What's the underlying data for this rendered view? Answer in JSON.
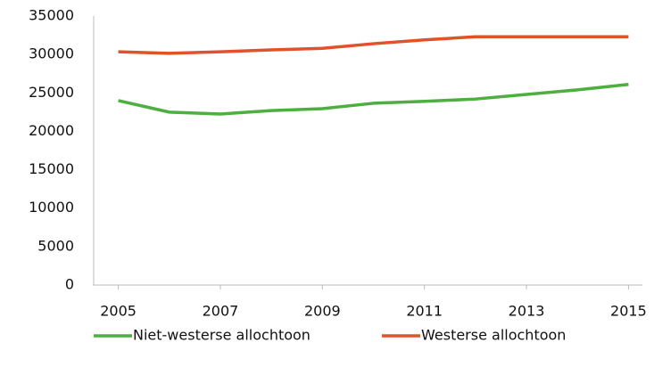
{
  "chart_data": {
    "type": "line",
    "x": [
      2005,
      2006,
      2007,
      2008,
      2009,
      2010,
      2011,
      2012,
      2013,
      2014,
      2015
    ],
    "series": [
      {
        "name": "Niet-westerse allochtoon",
        "color": "#4caf3f",
        "values": [
          24000,
          22500,
          22250,
          22700,
          22950,
          23650,
          23900,
          24200,
          24800,
          25400,
          26100
        ]
      },
      {
        "name": "Westerse allochtoon",
        "color": "#e0522a",
        "values": [
          30350,
          30150,
          30350,
          30600,
          30800,
          31400,
          31900,
          32300,
          32300,
          32300,
          32300
        ]
      }
    ],
    "xlim": [
      2004.5,
      2015.5
    ],
    "xticks": [
      2005,
      2007,
      2009,
      2011,
      2013,
      2015
    ],
    "ylim": [
      0,
      35000
    ],
    "yticks": [
      0,
      5000,
      10000,
      15000,
      20000,
      25000,
      30000,
      35000
    ],
    "grid": false,
    "legend": "bottom"
  }
}
